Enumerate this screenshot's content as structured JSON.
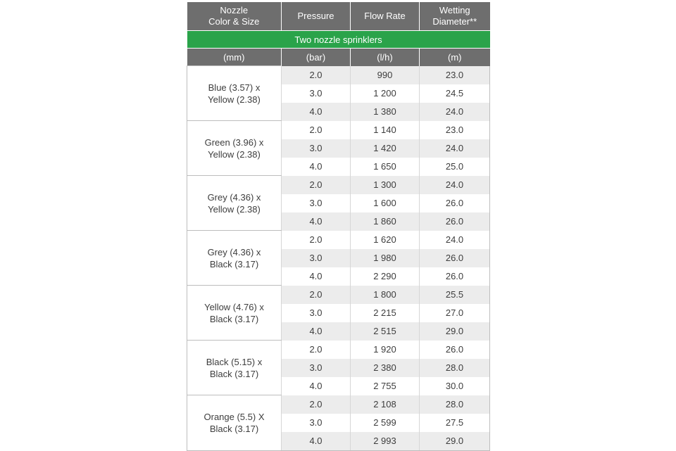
{
  "header": {
    "nozzle_line1": "Nozzle",
    "nozzle_line2": "Color & Size",
    "pressure": "Pressure",
    "flow_rate": "Flow Rate",
    "wetting_line1": "Wetting",
    "wetting_line2": "Diameter**"
  },
  "subheader": "Two nozzle sprinklers",
  "units": [
    "(mm)",
    "(bar)",
    "(l/h)",
    "(m)"
  ],
  "groups": [
    {
      "line1": "Blue (3.57) x",
      "line2": "Yellow (2.38)",
      "rows": [
        [
          "2.0",
          "990",
          "23.0"
        ],
        [
          "3.0",
          "1 200",
          "24.5"
        ],
        [
          "4.0",
          "1 380",
          "24.0"
        ]
      ]
    },
    {
      "line1": "Green (3.96) x",
      "line2": "Yellow (2.38)",
      "rows": [
        [
          "2.0",
          "1 140",
          "23.0"
        ],
        [
          "3.0",
          "1 420",
          "24.0"
        ],
        [
          "4.0",
          "1 650",
          "25.0"
        ]
      ]
    },
    {
      "line1": "Grey (4.36) x",
      "line2": "Yellow (2.38)",
      "rows": [
        [
          "2.0",
          "1 300",
          "24.0"
        ],
        [
          "3.0",
          "1 600",
          "26.0"
        ],
        [
          "4.0",
          "1 860",
          "26.0"
        ]
      ]
    },
    {
      "line1": "Grey (4.36) x",
      "line2": "Black (3.17)",
      "rows": [
        [
          "2.0",
          "1 620",
          "24.0"
        ],
        [
          "3.0",
          "1 980",
          "26.0"
        ],
        [
          "4.0",
          "2 290",
          "26.0"
        ]
      ]
    },
    {
      "line1": "Yellow (4.76) x",
      "line2": "Black (3.17)",
      "rows": [
        [
          "2.0",
          "1 800",
          "25.5"
        ],
        [
          "3.0",
          "2 215",
          "27.0"
        ],
        [
          "4.0",
          "2 515",
          "29.0"
        ]
      ]
    },
    {
      "line1": "Black (5.15) x",
      "line2": "Black (3.17)",
      "rows": [
        [
          "2.0",
          "1 920",
          "26.0"
        ],
        [
          "3.0",
          "2 380",
          "28.0"
        ],
        [
          "4.0",
          "2 755",
          "30.0"
        ]
      ]
    },
    {
      "line1": "Orange (5.5) X",
      "line2": "Black (3.17)",
      "rows": [
        [
          "2.0",
          "2 108",
          "28.0"
        ],
        [
          "3.0",
          "2 599",
          "27.5"
        ],
        [
          "4.0",
          "2 993",
          "29.0"
        ]
      ]
    }
  ],
  "colors": {
    "header_gray": "#6e6e6e",
    "subheader_green": "#2aa34a",
    "row_shade": "#ececec"
  }
}
